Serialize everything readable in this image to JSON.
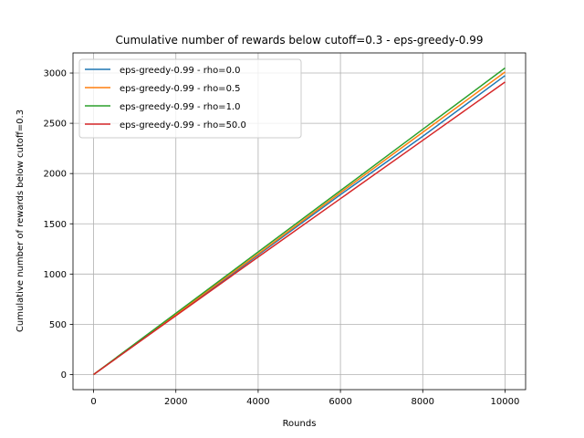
{
  "chart_data": {
    "type": "line",
    "title": "Cumulative number of rewards below cutoff=0.3 - eps-greedy-0.99",
    "xlabel": "Rounds",
    "ylabel": "Cumulative number of rewards below cutoff=0.3",
    "xlim": [
      -500,
      10500
    ],
    "ylim": [
      -150,
      3200
    ],
    "xticks": [
      0,
      2000,
      4000,
      6000,
      8000,
      10000
    ],
    "yticks": [
      0,
      500,
      1000,
      1500,
      2000,
      2500,
      3000
    ],
    "grid": true,
    "legend_position": "upper-left",
    "series": [
      {
        "name": "eps-greedy-0.99 - rho=0.0",
        "color": "#1f77b4",
        "x": [
          0,
          2000,
          4000,
          6000,
          8000,
          10000
        ],
        "y": [
          0,
          590,
          1190,
          1790,
          2370,
          2975
        ]
      },
      {
        "name": "eps-greedy-0.99 - rho=0.5",
        "color": "#ff7f0e",
        "x": [
          0,
          2000,
          4000,
          6000,
          8000,
          10000
        ],
        "y": [
          0,
          600,
          1200,
          1810,
          2410,
          3010
        ]
      },
      {
        "name": "eps-greedy-0.99 - rho=1.0",
        "color": "#2ca02c",
        "x": [
          0,
          2000,
          4000,
          6000,
          8000,
          10000
        ],
        "y": [
          0,
          610,
          1220,
          1830,
          2440,
          3050
        ]
      },
      {
        "name": "eps-greedy-0.99 - rho=50.0",
        "color": "#d62728",
        "x": [
          0,
          2000,
          4000,
          6000,
          8000,
          10000
        ],
        "y": [
          0,
          585,
          1170,
          1750,
          2330,
          2910
        ]
      }
    ]
  }
}
